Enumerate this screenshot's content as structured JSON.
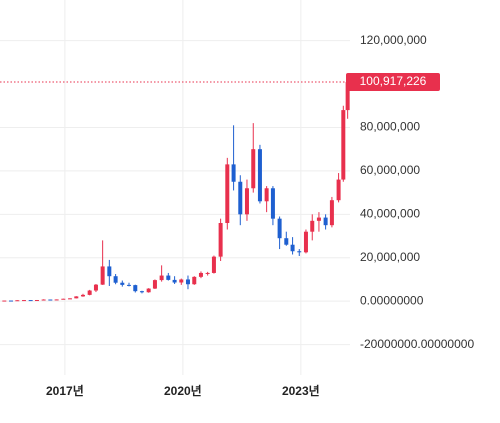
{
  "chart_data": {
    "type": "candlestick",
    "xlim": [
      2015.35,
      2024.25
    ],
    "xticks": [
      {
        "value": 2017,
        "label": "2017년"
      },
      {
        "value": 2020,
        "label": "2020년"
      },
      {
        "value": 2023,
        "label": "2023년"
      }
    ],
    "ylim": [
      -34000000,
      138700000
    ],
    "yticks": [
      {
        "value": 120000000,
        "label": "120,000,000"
      },
      {
        "value": 80000000,
        "label": "80,000,000"
      },
      {
        "value": 60000000,
        "label": "60,000,000"
      },
      {
        "value": 40000000,
        "label": "40,000,000"
      },
      {
        "value": 20000000,
        "label": "20,000,000"
      },
      {
        "value": 0,
        "label": "0.00000000"
      },
      {
        "value": -20000000,
        "label": "-20000000.00000000"
      }
    ],
    "grid": true,
    "up_color": "#e8304d",
    "down_color": "#1e5fd0",
    "last_price": {
      "value": 100917226,
      "label": "100,917,226"
    },
    "x": [
      2015.46,
      2015.63,
      2015.79,
      2015.96,
      2016.13,
      2016.29,
      2016.46,
      2016.63,
      2016.79,
      2016.96,
      2017.13,
      2017.29,
      2017.46,
      2017.63,
      2017.79,
      2017.96,
      2018.13,
      2018.29,
      2018.46,
      2018.63,
      2018.79,
      2018.96,
      2019.13,
      2019.29,
      2019.46,
      2019.63,
      2019.79,
      2019.96,
      2020.13,
      2020.29,
      2020.46,
      2020.63,
      2020.79,
      2020.96,
      2021.13,
      2021.29,
      2021.46,
      2021.63,
      2021.79,
      2021.96,
      2022.13,
      2022.29,
      2022.46,
      2022.63,
      2022.79,
      2022.96,
      2023.13,
      2023.29,
      2023.46,
      2023.63,
      2023.79,
      2023.96,
      2024.08,
      2024.19
    ],
    "open": [
      280000,
      290000,
      280000,
      430000,
      500000,
      490000,
      530000,
      760000,
      680000,
      800000,
      1120000,
      1300000,
      2200000,
      2900000,
      4900000,
      7600000,
      16000000,
      11500000,
      8500000,
      7500000,
      7400000,
      4600000,
      4100000,
      5800000,
      9700000,
      11800000,
      9800000,
      8600000,
      10000000,
      7800000,
      11200000,
      13000000,
      13000000,
      20500000,
      36000000,
      63000000,
      55000000,
      40000000,
      52000000,
      70000000,
      46000000,
      52000000,
      38000000,
      29000000,
      26000000,
      23000000,
      22500000,
      32000000,
      37000000,
      38500000,
      35000000,
      46500000,
      56000000,
      88000000
    ],
    "high": [
      300000,
      320000,
      450000,
      550000,
      520000,
      550000,
      880000,
      780000,
      820000,
      1150000,
      1350000,
      2300000,
      3400000,
      5200000,
      7900000,
      28000000,
      19000000,
      12500000,
      9500000,
      8500000,
      7600000,
      4800000,
      6000000,
      10000000,
      16500000,
      13000000,
      11500000,
      10400000,
      11800000,
      11500000,
      13700000,
      13500000,
      21000000,
      38000000,
      66000000,
      81000000,
      58000000,
      56000000,
      82000000,
      72000000,
      53000000,
      53000000,
      39000000,
      32000000,
      29500000,
      24000000,
      33000000,
      40000000,
      41000000,
      40000000,
      48000000,
      59000000,
      90000000,
      102000000
    ],
    "low": [
      260000,
      270000,
      270000,
      400000,
      450000,
      470000,
      520000,
      630000,
      660000,
      780000,
      1000000,
      1250000,
      2000000,
      2700000,
      4200000,
      7500000,
      7000000,
      7800000,
      6700000,
      6800000,
      4000000,
      3600000,
      3900000,
      5600000,
      9000000,
      9500000,
      7900000,
      7500000,
      5500000,
      7500000,
      10600000,
      11800000,
      12700000,
      18500000,
      33000000,
      51000000,
      35000000,
      37000000,
      50000000,
      45000000,
      41000000,
      35000000,
      24000000,
      25500000,
      21500000,
      20800000,
      22000000,
      28000000,
      32000000,
      33000000,
      34000000,
      45500000,
      55000000,
      84000000
    ],
    "close": [
      290000,
      280000,
      430000,
      500000,
      490000,
      530000,
      760000,
      680000,
      800000,
      1120000,
      1300000,
      2200000,
      2900000,
      4900000,
      7600000,
      16000000,
      11500000,
      8500000,
      7500000,
      7400000,
      4600000,
      4100000,
      5800000,
      9700000,
      11800000,
      9800000,
      8600000,
      10000000,
      7800000,
      11200000,
      13000000,
      13000000,
      20500000,
      36000000,
      63000000,
      55000000,
      40000000,
      52000000,
      70000000,
      46000000,
      52000000,
      38000000,
      29000000,
      26000000,
      23000000,
      22500000,
      32000000,
      37000000,
      38500000,
      35000000,
      46500000,
      56000000,
      88000000,
      100917226
    ]
  }
}
